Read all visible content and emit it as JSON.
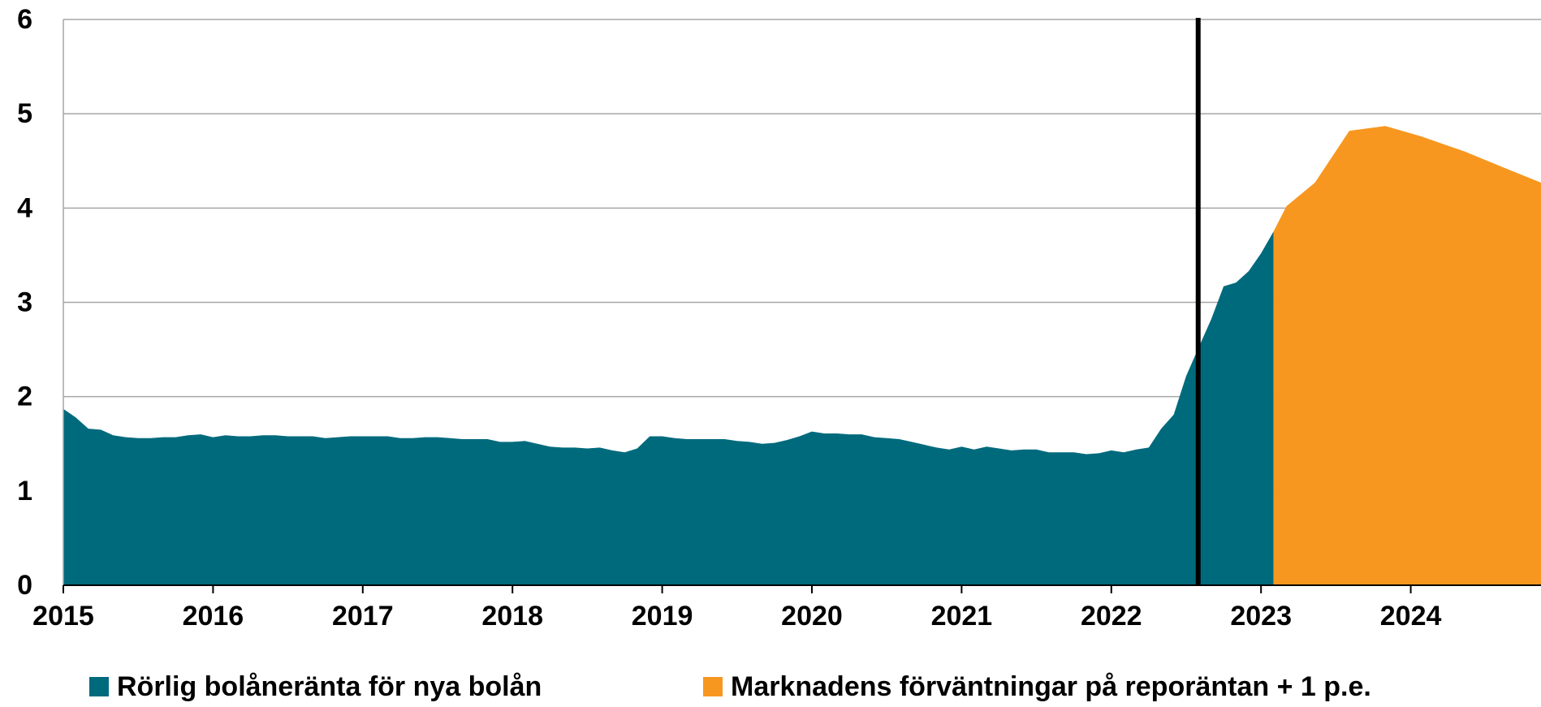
{
  "chart_data": {
    "type": "area",
    "series": [
      {
        "name": "Rörlig bolåneränta för nya bolån",
        "color": "#006a7d",
        "x": [
          2015.0,
          2015.083,
          2015.167,
          2015.25,
          2015.333,
          2015.417,
          2015.5,
          2015.583,
          2015.667,
          2015.75,
          2015.833,
          2015.917,
          2016.0,
          2016.083,
          2016.167,
          2016.25,
          2016.333,
          2016.417,
          2016.5,
          2016.583,
          2016.667,
          2016.75,
          2016.833,
          2016.917,
          2017.0,
          2017.083,
          2017.167,
          2017.25,
          2017.333,
          2017.417,
          2017.5,
          2017.583,
          2017.667,
          2017.75,
          2017.833,
          2017.917,
          2018.0,
          2018.083,
          2018.167,
          2018.25,
          2018.333,
          2018.417,
          2018.5,
          2018.583,
          2018.667,
          2018.75,
          2018.833,
          2018.917,
          2019.0,
          2019.083,
          2019.167,
          2019.25,
          2019.333,
          2019.417,
          2019.5,
          2019.583,
          2019.667,
          2019.75,
          2019.833,
          2019.917,
          2020.0,
          2020.083,
          2020.167,
          2020.25,
          2020.333,
          2020.417,
          2020.5,
          2020.583,
          2020.667,
          2020.75,
          2020.833,
          2020.917,
          2021.0,
          2021.083,
          2021.167,
          2021.25,
          2021.333,
          2021.417,
          2021.5,
          2021.583,
          2021.667,
          2021.75,
          2021.833,
          2021.917,
          2022.0,
          2022.083,
          2022.167,
          2022.25,
          2022.333,
          2022.417,
          2022.5,
          2022.583,
          2022.667,
          2022.75,
          2022.833,
          2022.917,
          2023.0,
          2023.083
        ],
        "values": [
          1.87,
          1.78,
          1.66,
          1.65,
          1.59,
          1.57,
          1.56,
          1.56,
          1.57,
          1.57,
          1.59,
          1.6,
          1.57,
          1.59,
          1.58,
          1.58,
          1.59,
          1.59,
          1.58,
          1.58,
          1.58,
          1.56,
          1.57,
          1.58,
          1.58,
          1.58,
          1.58,
          1.56,
          1.56,
          1.57,
          1.57,
          1.56,
          1.55,
          1.55,
          1.55,
          1.52,
          1.52,
          1.53,
          1.5,
          1.47,
          1.46,
          1.46,
          1.45,
          1.46,
          1.43,
          1.41,
          1.45,
          1.58,
          1.58,
          1.56,
          1.55,
          1.55,
          1.55,
          1.55,
          1.53,
          1.52,
          1.5,
          1.51,
          1.54,
          1.58,
          1.63,
          1.61,
          1.61,
          1.6,
          1.6,
          1.57,
          1.56,
          1.55,
          1.52,
          1.49,
          1.46,
          1.44,
          1.47,
          1.44,
          1.47,
          1.45,
          1.43,
          1.44,
          1.44,
          1.41,
          1.41,
          1.41,
          1.39,
          1.4,
          1.43,
          1.41,
          1.44,
          1.46,
          1.66,
          1.81,
          2.22,
          2.52,
          2.82,
          3.17,
          3.21,
          3.33,
          3.52,
          3.75
        ]
      },
      {
        "name": "Marknadens förväntningar på reporäntan + 1 p.e.",
        "color": "#f7971f",
        "x": [
          2023.083,
          2023.17,
          2023.36,
          2023.59,
          2023.83,
          2024.07,
          2024.36,
          2024.62,
          2024.87
        ],
        "values": [
          3.75,
          4.02,
          4.27,
          4.82,
          4.87,
          4.76,
          4.6,
          4.43,
          4.27
        ]
      }
    ],
    "marker_x": 2022.58,
    "xlim": [
      2015,
      2024.87
    ],
    "xticks": [
      2015,
      2016,
      2017,
      2018,
      2019,
      2020,
      2021,
      2022,
      2023,
      2024
    ],
    "ylim": [
      0,
      6
    ],
    "yticks": [
      0,
      1,
      2,
      3,
      4,
      5,
      6
    ],
    "grid": true,
    "legend": "bottom"
  }
}
